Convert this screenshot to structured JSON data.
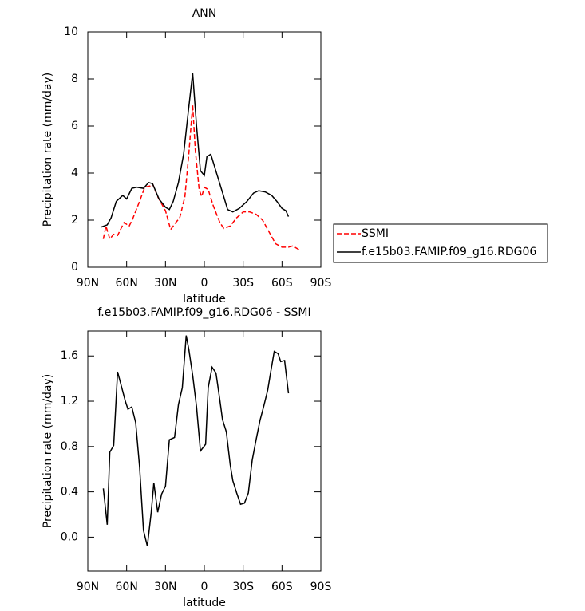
{
  "chart_data": [
    {
      "type": "line",
      "title": "ANN",
      "xlabel": "latitude",
      "ylabel": "Precipitation rate (mm/day)",
      "xlim": [
        90,
        -90
      ],
      "xticks": [
        {
          "value": 90,
          "label": "90N"
        },
        {
          "value": 60,
          "label": "60N"
        },
        {
          "value": 30,
          "label": "30N"
        },
        0,
        {
          "value": -30,
          "label": "30S"
        },
        {
          "value": -60,
          "label": "60S"
        },
        {
          "value": -90,
          "label": "90S"
        }
      ],
      "ylim": [
        0,
        10
      ],
      "yticks": [
        0,
        2,
        4,
        6,
        8,
        10
      ],
      "legend": "right",
      "series": [
        {
          "name": "SSMI",
          "color": "#ff0000",
          "dash": true,
          "x": [
            78,
            76,
            73,
            70,
            67,
            62,
            58,
            55,
            50,
            46,
            42,
            40,
            36,
            30,
            26,
            22,
            19,
            15,
            12,
            9,
            7,
            4,
            2,
            0,
            -3,
            -7,
            -12,
            -15,
            -20,
            -25,
            -30,
            -35,
            -40,
            -45,
            -50,
            -55,
            -60,
            -65,
            -68,
            -70,
            -73
          ],
          "values": [
            1.2,
            1.75,
            1.2,
            1.4,
            1.35,
            1.9,
            1.75,
            2.1,
            2.8,
            3.4,
            3.45,
            3.55,
            3.0,
            2.4,
            1.6,
            1.9,
            2.1,
            3.0,
            4.8,
            6.9,
            5.0,
            3.3,
            3.0,
            3.4,
            3.3,
            2.6,
            1.9,
            1.65,
            1.75,
            2.1,
            2.35,
            2.35,
            2.25,
            2.0,
            1.5,
            1.0,
            0.85,
            0.85,
            0.9,
            0.85,
            0.75
          ]
        },
        {
          "name": "f.e15b03.FAMIP.f09_g16.RDG06",
          "color": "#000000",
          "dash": false,
          "x": [
            80,
            75,
            72,
            68,
            63,
            60,
            56,
            52,
            47,
            43,
            40,
            35,
            30,
            27,
            24,
            20,
            16,
            12,
            9,
            6,
            3,
            0,
            -2,
            -5,
            -10,
            -15,
            -18,
            -22,
            -27,
            -33,
            -38,
            -42,
            -47,
            -52,
            -56,
            -60,
            -63,
            -65
          ],
          "values": [
            1.7,
            1.8,
            2.1,
            2.8,
            3.05,
            2.9,
            3.35,
            3.4,
            3.35,
            3.6,
            3.55,
            2.9,
            2.55,
            2.45,
            2.8,
            3.6,
            4.8,
            6.8,
            8.25,
            6.0,
            4.1,
            3.9,
            4.7,
            4.8,
            3.9,
            3.0,
            2.45,
            2.35,
            2.5,
            2.8,
            3.15,
            3.25,
            3.2,
            3.05,
            2.8,
            2.5,
            2.4,
            2.15
          ]
        }
      ]
    },
    {
      "type": "line",
      "title": "f.e15b03.FAMIP.f09_g16.RDG06 - SSMI",
      "xlabel": "latitude",
      "ylabel": "Precipitation rate (mm/day)",
      "xlim": [
        90,
        -90
      ],
      "xticks": [
        {
          "value": 90,
          "label": "90N"
        },
        {
          "value": 60,
          "label": "60N"
        },
        {
          "value": 30,
          "label": "30N"
        },
        0,
        {
          "value": -30,
          "label": "30S"
        },
        {
          "value": -60,
          "label": "60S"
        },
        {
          "value": -90,
          "label": "90S"
        }
      ],
      "ylim": [
        -0.3,
        1.82
      ],
      "yticks": [
        {
          "value": 0,
          "label": "0.0"
        },
        0.4,
        0.8,
        1.2,
        1.6
      ],
      "series": [
        {
          "color": "#000000",
          "dash": false,
          "x": [
            78,
            75,
            73,
            70,
            67,
            64,
            61,
            59,
            56,
            53,
            50,
            47,
            44,
            41,
            39,
            36,
            33,
            30,
            27,
            23,
            20,
            17,
            14,
            12,
            9,
            6,
            3,
            -1,
            -3,
            -6,
            -9,
            -12,
            -14,
            -17,
            -20,
            -22,
            -25,
            -28,
            -31,
            -34,
            -37,
            -40,
            -43,
            -46,
            -49,
            -51,
            -54,
            -57,
            -59,
            -62,
            -65
          ],
          "values": [
            0.43,
            0.11,
            0.75,
            0.81,
            1.46,
            1.33,
            1.2,
            1.13,
            1.15,
            1.01,
            0.62,
            0.06,
            -0.08,
            0.22,
            0.48,
            0.22,
            0.38,
            0.45,
            0.86,
            0.88,
            1.17,
            1.32,
            1.78,
            1.66,
            1.43,
            1.15,
            0.76,
            0.82,
            1.32,
            1.5,
            1.45,
            1.21,
            1.04,
            0.93,
            0.64,
            0.5,
            0.39,
            0.29,
            0.3,
            0.39,
            0.68,
            0.86,
            1.03,
            1.16,
            1.3,
            1.44,
            1.64,
            1.62,
            1.55,
            1.56,
            1.27
          ]
        }
      ]
    }
  ]
}
